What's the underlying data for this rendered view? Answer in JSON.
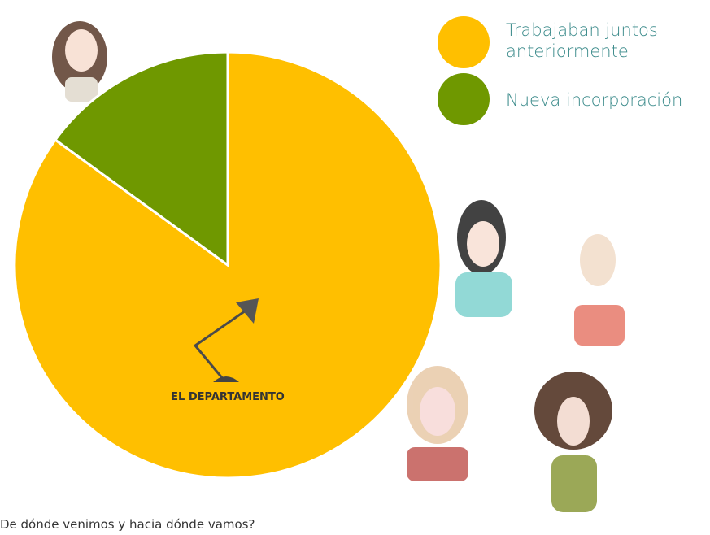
{
  "chart_data": {
    "type": "pie",
    "series": [
      {
        "name": "Trabajaban juntos anteriormente",
        "color": "#ffbf00",
        "values": [
          85
        ]
      },
      {
        "name": "Nueva incorporación",
        "color": "#6f9800",
        "values": [
          15
        ]
      }
    ],
    "logo": "EL DEPARTAMENTO",
    "caption": "¿De dónde venimos y hacia dónde vamos?"
  }
}
